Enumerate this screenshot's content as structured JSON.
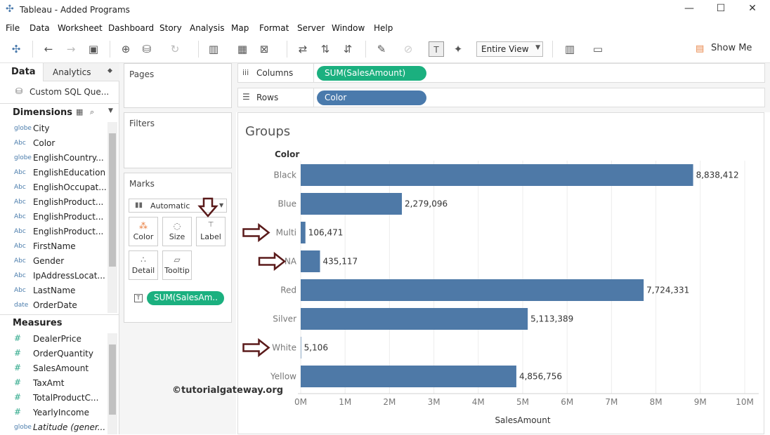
{
  "window": {
    "title": "Tableau - Added Programs",
    "minimize": "—",
    "maximize": "☐",
    "close": "✕"
  },
  "menu": [
    "File",
    "Data",
    "Worksheet",
    "Dashboard",
    "Story",
    "Analysis",
    "Map",
    "Format",
    "Server",
    "Window",
    "Help"
  ],
  "toolbar": {
    "fit_value": "Entire View",
    "show_me": "Show Me"
  },
  "left_pane": {
    "tabs": {
      "data": "Data",
      "analytics": "Analytics"
    },
    "datasource": "Custom SQL Que...",
    "dimensions_title": "Dimensions",
    "dimensions": [
      {
        "type": "globe",
        "label": "City"
      },
      {
        "type": "Abc",
        "label": "Color"
      },
      {
        "type": "globe",
        "label": "EnglishCountry..."
      },
      {
        "type": "Abc",
        "label": "EnglishEducation"
      },
      {
        "type": "Abc",
        "label": "EnglishOccupat..."
      },
      {
        "type": "Abc",
        "label": "EnglishProduct..."
      },
      {
        "type": "Abc",
        "label": "EnglishProduct..."
      },
      {
        "type": "Abc",
        "label": "EnglishProduct..."
      },
      {
        "type": "Abc",
        "label": "FirstName"
      },
      {
        "type": "Abc",
        "label": "Gender"
      },
      {
        "type": "Abc",
        "label": "IpAddressLocat..."
      },
      {
        "type": "Abc",
        "label": "LastName"
      },
      {
        "type": "date",
        "label": "OrderDate"
      }
    ],
    "measures_title": "Measures",
    "measures": [
      {
        "type": "#",
        "label": "DealerPrice"
      },
      {
        "type": "#",
        "label": "OrderQuantity"
      },
      {
        "type": "#",
        "label": "SalesAmount"
      },
      {
        "type": "#",
        "label": "TaxAmt"
      },
      {
        "type": "#",
        "label": "TotalProductC..."
      },
      {
        "type": "#",
        "label": "YearlyIncome"
      },
      {
        "type": "globe",
        "label": "Latitude (gener..."
      }
    ]
  },
  "cards": {
    "pages": "Pages",
    "filters": "Filters",
    "marks": "Marks",
    "mark_type": "Automatic",
    "buttons": {
      "color": "Color",
      "size": "Size",
      "label": "Label",
      "detail": "Detail",
      "tooltip": "Tooltip"
    },
    "label_pill": "SUM(SalesAm.."
  },
  "shelves": {
    "columns_label": "Columns",
    "columns_pill": "SUM(SalesAmount)",
    "rows_label": "Rows",
    "rows_pill": "Color"
  },
  "watermark": "©tutorialgateway.org",
  "chart_data": {
    "type": "bar",
    "orientation": "horizontal",
    "title": "Groups",
    "row_header": "Color",
    "categories": [
      "Black",
      "Blue",
      "Multi",
      "NA",
      "Red",
      "Silver",
      "White",
      "Yellow"
    ],
    "values": [
      8838412,
      2279096,
      106471,
      435117,
      7724331,
      5113389,
      5106,
      4856756
    ],
    "value_labels": [
      "8,838,412",
      "2,279,096",
      "106,471",
      "435,117",
      "7,724,331",
      "5,113,389",
      "5,106",
      "4,856,756"
    ],
    "xlabel": "SalesAmount",
    "xlim": [
      0,
      10000000
    ],
    "x_ticks": [
      "0M",
      "1M",
      "2M",
      "3M",
      "4M",
      "5M",
      "6M",
      "7M",
      "8M",
      "9M",
      "10M"
    ],
    "bar_color": "#4e79a7",
    "annotated_rows": [
      "Multi",
      "NA",
      "White"
    ]
  }
}
